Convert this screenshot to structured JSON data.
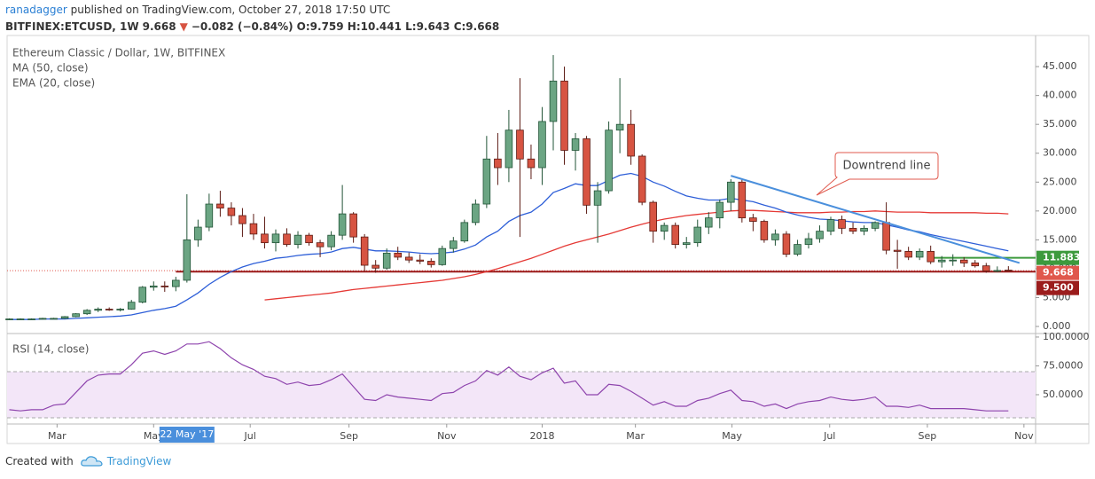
{
  "header": {
    "author": "ranadagger",
    "published": "published on TradingView.com, October 27, 2018 17:50 UTC",
    "symbol": "BITFINEX:ETCUSD, 1W",
    "last": "9.668",
    "arrow": "▼",
    "change": "−0.082 (−0.84%)",
    "ohlc": "O:9.759 H:10.441 L:9.643 C:9.668"
  },
  "footer": {
    "text": "Created with",
    "brand": "TradingView"
  },
  "chart_data": {
    "type": "candlestick",
    "title": "Ethereum Classic / Dollar, 1W, BITFINEX",
    "up_color": "#6ba583",
    "down_color": "#d75442",
    "x": [
      -48,
      -47,
      -46,
      -45,
      -44,
      -43,
      -42,
      -41,
      -40,
      -39,
      -38,
      -37,
      -36,
      -35,
      -34,
      -33,
      -32,
      -31,
      -30,
      -29,
      -28,
      -27,
      -26,
      -25,
      -24,
      -23,
      -22,
      -21,
      -20,
      -19,
      -18,
      -17,
      -16,
      -15,
      -14,
      -13,
      -12,
      -11,
      -10,
      -9,
      -8,
      -7,
      -6,
      -5,
      -4,
      -3,
      -2,
      -1,
      0,
      1,
      2,
      3,
      4,
      5,
      6,
      7,
      8,
      9,
      10,
      11,
      12,
      13,
      14,
      15,
      16,
      17,
      18,
      19,
      20,
      21,
      22,
      23,
      24,
      25,
      26,
      27,
      28,
      29,
      30,
      31,
      32,
      33,
      34,
      35,
      36,
      37,
      38,
      39,
      40,
      41,
      42
    ],
    "ohlc": [
      [
        1.2,
        1.4,
        1.1,
        1.3
      ],
      [
        1.3,
        1.4,
        1.2,
        1.3
      ],
      [
        1.3,
        1.4,
        1.2,
        1.3
      ],
      [
        1.3,
        1.5,
        1.2,
        1.4
      ],
      [
        1.4,
        1.5,
        1.3,
        1.4
      ],
      [
        1.4,
        1.8,
        1.3,
        1.7
      ],
      [
        1.7,
        2.3,
        1.6,
        2.2
      ],
      [
        2.2,
        3.0,
        2.0,
        2.8
      ],
      [
        2.8,
        3.3,
        2.5,
        3.0
      ],
      [
        3.0,
        3.3,
        2.7,
        2.9
      ],
      [
        2.9,
        3.2,
        2.6,
        3.0
      ],
      [
        3.0,
        4.6,
        2.9,
        4.2
      ],
      [
        4.2,
        7.0,
        4.0,
        6.8
      ],
      [
        6.8,
        7.8,
        6.2,
        7.0
      ],
      [
        7.0,
        7.8,
        6.0,
        6.9
      ],
      [
        6.9,
        8.6,
        6.1,
        8.0
      ],
      [
        8.0,
        22.9,
        7.6,
        15.0
      ],
      [
        15.0,
        18.5,
        13.8,
        17.2
      ],
      [
        17.2,
        23.0,
        16.5,
        21.2
      ],
      [
        21.2,
        23.5,
        19.0,
        20.5
      ],
      [
        20.5,
        21.5,
        17.5,
        19.2
      ],
      [
        19.2,
        20.5,
        15.5,
        17.8
      ],
      [
        17.8,
        19.5,
        15.0,
        16.0
      ],
      [
        16.0,
        19.0,
        13.5,
        14.5
      ],
      [
        14.5,
        16.8,
        13.0,
        16.0
      ],
      [
        16.0,
        17.0,
        13.8,
        14.2
      ],
      [
        14.2,
        16.5,
        13.5,
        15.8
      ],
      [
        15.8,
        16.2,
        14.0,
        14.5
      ],
      [
        14.5,
        15.0,
        12.0,
        13.8
      ],
      [
        13.8,
        16.5,
        13.2,
        15.8
      ],
      [
        15.8,
        24.5,
        15.0,
        19.5
      ],
      [
        19.5,
        19.8,
        14.5,
        15.5
      ],
      [
        15.5,
        16.0,
        9.6,
        10.6
      ],
      [
        10.6,
        11.5,
        9.3,
        10.1
      ],
      [
        10.1,
        13.5,
        9.8,
        12.7
      ],
      [
        12.7,
        13.8,
        11.5,
        12.0
      ],
      [
        12.0,
        12.8,
        11.0,
        11.5
      ],
      [
        11.5,
        12.5,
        10.8,
        11.3
      ],
      [
        11.3,
        11.8,
        10.2,
        10.7
      ],
      [
        10.7,
        14.0,
        10.5,
        13.5
      ],
      [
        13.5,
        15.5,
        12.8,
        14.8
      ],
      [
        14.8,
        18.5,
        14.5,
        18.0
      ],
      [
        18.0,
        22.0,
        17.5,
        21.2
      ],
      [
        21.2,
        33.0,
        20.5,
        29.0
      ],
      [
        29.0,
        33.5,
        24.5,
        27.5
      ],
      [
        27.5,
        37.5,
        25.0,
        34.0
      ],
      [
        34.0,
        43.0,
        15.5,
        29.0
      ],
      [
        29.0,
        31.5,
        25.5,
        27.5
      ],
      [
        27.5,
        38.0,
        24.5,
        35.5
      ],
      [
        35.5,
        47.0,
        30.5,
        42.5
      ],
      [
        42.5,
        45.0,
        28.0,
        30.5
      ],
      [
        30.5,
        33.5,
        27.0,
        32.5
      ],
      [
        32.5,
        33.0,
        19.5,
        21.0
      ],
      [
        21.0,
        25.0,
        14.5,
        23.5
      ],
      [
        23.5,
        35.5,
        23.0,
        34.0
      ],
      [
        34.0,
        43.0,
        30.0,
        35.0
      ],
      [
        35.0,
        37.5,
        28.0,
        29.5
      ],
      [
        29.5,
        29.8,
        21.0,
        21.5
      ],
      [
        21.5,
        21.8,
        14.5,
        16.5
      ],
      [
        16.5,
        18.0,
        15.0,
        17.5
      ],
      [
        17.5,
        18.0,
        13.5,
        14.2
      ],
      [
        14.2,
        15.5,
        13.5,
        14.5
      ],
      [
        14.5,
        18.5,
        13.8,
        17.2
      ],
      [
        17.2,
        19.8,
        16.0,
        18.8
      ],
      [
        18.8,
        22.0,
        17.0,
        21.5
      ],
      [
        21.5,
        25.5,
        20.0,
        25.0
      ],
      [
        25.0,
        25.5,
        18.0,
        18.8
      ],
      [
        18.8,
        19.5,
        16.5,
        18.2
      ],
      [
        18.2,
        18.5,
        14.5,
        15.0
      ],
      [
        15.0,
        16.8,
        14.0,
        16.0
      ],
      [
        16.0,
        16.5,
        12.0,
        12.5
      ],
      [
        12.5,
        15.0,
        12.2,
        14.2
      ],
      [
        14.2,
        16.2,
        13.5,
        15.2
      ],
      [
        15.2,
        17.5,
        14.5,
        16.5
      ],
      [
        16.5,
        19.0,
        15.8,
        18.5
      ],
      [
        18.5,
        19.2,
        16.0,
        17.0
      ],
      [
        17.0,
        18.0,
        16.0,
        16.5
      ],
      [
        16.5,
        17.5,
        15.8,
        17.0
      ],
      [
        17.0,
        18.2,
        16.5,
        18.0
      ],
      [
        18.0,
        21.5,
        12.5,
        13.2
      ],
      [
        13.2,
        15.0,
        10.0,
        13.0
      ],
      [
        13.0,
        13.8,
        11.5,
        12.0
      ],
      [
        12.0,
        13.5,
        11.5,
        13.0
      ],
      [
        13.0,
        14.0,
        10.8,
        11.2
      ],
      [
        11.2,
        12.2,
        10.2,
        11.5
      ],
      [
        11.5,
        12.5,
        10.5,
        11.5
      ],
      [
        11.5,
        12.0,
        10.3,
        11.0
      ],
      [
        11.0,
        11.5,
        10.2,
        10.5
      ],
      [
        10.5,
        11.0,
        9.3,
        9.6
      ],
      [
        9.6,
        10.4,
        9.4,
        9.7
      ],
      [
        9.759,
        10.441,
        9.643,
        9.668
      ]
    ],
    "indicators": [
      {
        "name": "MA (50, close)",
        "color": "#e53935",
        "values": [
          null,
          null,
          null,
          null,
          null,
          null,
          null,
          null,
          null,
          null,
          null,
          null,
          null,
          null,
          null,
          null,
          null,
          null,
          null,
          null,
          null,
          null,
          null,
          4.6,
          4.8,
          5.0,
          5.2,
          5.4,
          5.6,
          5.8,
          6.1,
          6.4,
          6.6,
          6.8,
          7.0,
          7.2,
          7.4,
          7.6,
          7.8,
          8.0,
          8.3,
          8.6,
          9.0,
          9.5,
          10.0,
          10.6,
          11.2,
          11.8,
          12.5,
          13.2,
          13.9,
          14.5,
          15.0,
          15.5,
          16.0,
          16.6,
          17.2,
          17.7,
          18.2,
          18.6,
          18.9,
          19.2,
          19.4,
          19.6,
          19.8,
          20.0,
          20.1,
          20.1,
          20.0,
          19.9,
          19.8,
          19.7,
          19.7,
          19.7,
          19.8,
          19.8,
          19.9,
          19.9,
          20.0,
          19.9,
          19.8,
          19.8,
          19.8,
          19.7,
          19.7,
          19.7,
          19.7,
          19.7,
          19.6,
          19.6,
          19.5
        ]
      },
      {
        "name": "EMA (20, close)",
        "color": "#2e5fd8",
        "values": [
          1.2,
          1.2,
          1.2,
          1.3,
          1.3,
          1.3,
          1.4,
          1.5,
          1.6,
          1.7,
          1.8,
          2.0,
          2.4,
          2.8,
          3.1,
          3.5,
          4.6,
          5.8,
          7.3,
          8.5,
          9.5,
          10.3,
          10.9,
          11.3,
          11.8,
          12.0,
          12.3,
          12.5,
          12.6,
          12.9,
          13.5,
          13.7,
          13.4,
          13.1,
          13.1,
          13.0,
          12.9,
          12.7,
          12.6,
          12.7,
          12.9,
          13.4,
          14.1,
          15.5,
          16.5,
          18.2,
          19.2,
          19.8,
          21.2,
          23.2,
          23.9,
          24.7,
          24.4,
          24.4,
          25.3,
          26.2,
          26.5,
          26.0,
          25.0,
          24.3,
          23.4,
          22.6,
          22.2,
          21.9,
          21.9,
          22.2,
          21.9,
          21.6,
          21.0,
          20.5,
          19.8,
          19.3,
          18.9,
          18.6,
          18.5,
          18.3,
          18.1,
          18.0,
          18.0,
          17.6,
          17.2,
          16.7,
          16.4,
          15.9,
          15.5,
          15.1,
          14.7,
          14.3,
          13.9,
          13.5,
          13.1
        ]
      }
    ],
    "xlim": [
      -48.2,
      44.45
    ],
    "xticks": [
      {
        "value": -43.7,
        "label": "Mar"
      },
      {
        "value": -35.0,
        "label": "May"
      },
      {
        "value": -26.3,
        "label": "Jul"
      },
      {
        "value": -17.4,
        "label": "Sep"
      },
      {
        "value": -8.6,
        "label": "Nov"
      },
      {
        "value": 0,
        "label": "2018"
      },
      {
        "value": 8.4,
        "label": "Mar"
      },
      {
        "value": 17.1,
        "label": "May"
      },
      {
        "value": 25.9,
        "label": "Jul"
      },
      {
        "value": 34.7,
        "label": "Sep"
      },
      {
        "value": 43.4,
        "label": "Nov"
      }
    ],
    "ylim": [
      -1.07,
      50.39
    ],
    "yticks": [
      {
        "value": 0,
        "label": "0.000"
      },
      {
        "value": 5,
        "label": "5.000"
      },
      {
        "value": 10,
        "label": "10.000"
      },
      {
        "value": 15,
        "label": "15.000"
      },
      {
        "value": 20,
        "label": "20.000"
      },
      {
        "value": 25,
        "label": "25.000"
      },
      {
        "value": 30,
        "label": "30.000"
      },
      {
        "value": 35,
        "label": "35.000"
      },
      {
        "value": 40,
        "label": "40.000"
      },
      {
        "value": 45,
        "label": "45.000"
      }
    ],
    "levels": [
      {
        "value": 11.883,
        "color": "#3d9a3d",
        "x_start": 35
      },
      {
        "value": 9.5,
        "label": "9.500",
        "color": "#9b1c1c",
        "x_start": -33
      }
    ],
    "last_price": {
      "value": 9.668,
      "color": "#e0584c"
    },
    "trendline": {
      "label": "Downtrend line",
      "color": "#4a8fdc",
      "x": [
        17,
        43
      ],
      "y": [
        26.1,
        11.0
      ]
    },
    "crosshair": {
      "x": -32,
      "label": "22 May '17"
    },
    "rsi": {
      "title": "RSI (14, close)",
      "color": "#8e44ad",
      "band_color": "#f3e6f8",
      "bands": [
        30,
        70
      ],
      "values": [
        37,
        36,
        37,
        37,
        41,
        42,
        52,
        62,
        67,
        68,
        68,
        76,
        86,
        88,
        85,
        88,
        94,
        94,
        96,
        90,
        82,
        76,
        72,
        66,
        64,
        59,
        61,
        58,
        59,
        63,
        68,
        57,
        46,
        45,
        50,
        48,
        47,
        46,
        45,
        51,
        52,
        58,
        62,
        71,
        67,
        74,
        66,
        63,
        69,
        73,
        60,
        62,
        50,
        50,
        59,
        58,
        53,
        47,
        41,
        44,
        40,
        40,
        45,
        47,
        51,
        54,
        45,
        44,
        40,
        42,
        38,
        42,
        44,
        45,
        48,
        46,
        45,
        46,
        48,
        40,
        40,
        39,
        41,
        38,
        38,
        38,
        38,
        37,
        36,
        36,
        36
      ],
      "ylim": [
        24.6,
        101.5
      ],
      "yticks": [
        {
          "value": 50,
          "label": "50.0000"
        },
        {
          "value": 75,
          "label": "75.0000"
        },
        {
          "value": 100,
          "label": "100.0000"
        }
      ]
    }
  }
}
